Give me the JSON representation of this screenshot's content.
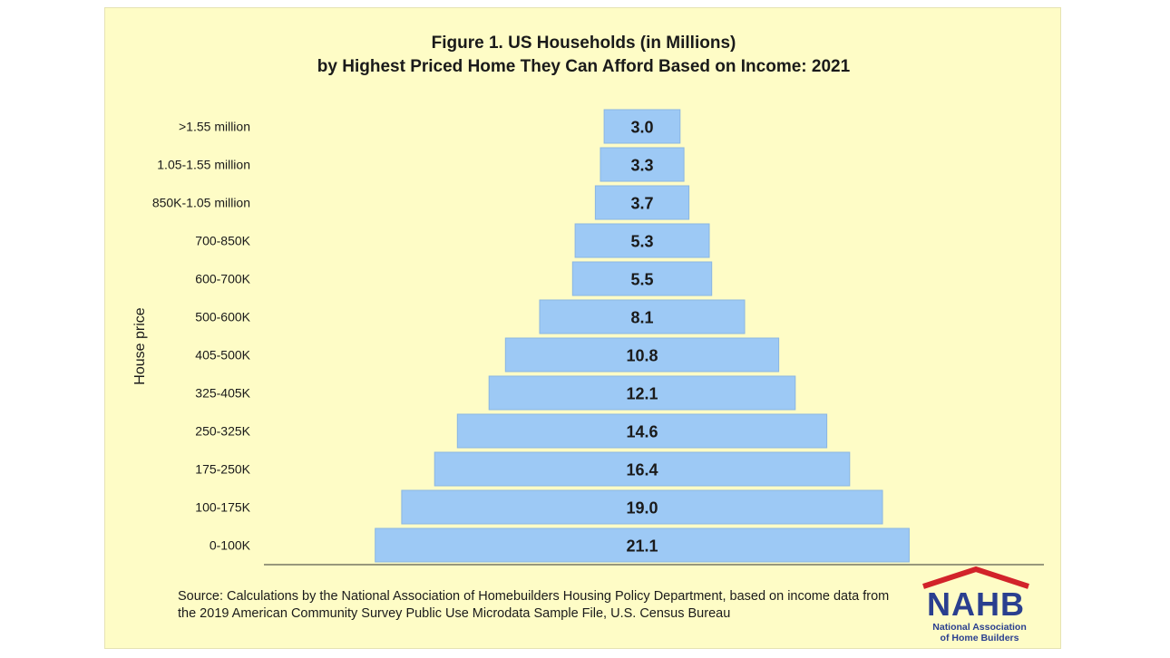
{
  "chart_data": {
    "type": "bar",
    "orientation": "horizontal-centered",
    "title": "Figure 1. US Households (in Millions)",
    "subtitle": "by Highest Priced Home They Can Afford Based on Income: 2021",
    "ylabel": "House price",
    "xlabel": "",
    "categories": [
      ">1.55 million",
      "1.05-1.55 million",
      "850K-1.05 million",
      "700-850K",
      "600-700K",
      "500-600K",
      "405-500K",
      "325-405K",
      "250-325K",
      "175-250K",
      "100-175K",
      "0-100K"
    ],
    "values": [
      3.0,
      3.3,
      3.7,
      5.3,
      5.5,
      8.1,
      10.8,
      12.1,
      14.6,
      16.4,
      19.0,
      21.1
    ],
    "value_labels": [
      "3.0",
      "3.3",
      "3.7",
      "5.3",
      "5.5",
      "8.1",
      "10.8",
      "12.1",
      "14.6",
      "16.4",
      "19.0",
      "21.1"
    ],
    "bar_color": "#9dc9f5",
    "grid": false
  },
  "source": {
    "text": "Source: Calculations by the National Association of Homebuilders Housing Policy Department, based on income data from the 2019 American Community Survey Public Use Microdata Sample File, U.S. Census Bureau"
  },
  "logo": {
    "name": "NAHB",
    "subtitle_line1": "National Association",
    "subtitle_line2": "of Home Builders",
    "blue": "#2a3f8f",
    "red": "#d2232a"
  }
}
